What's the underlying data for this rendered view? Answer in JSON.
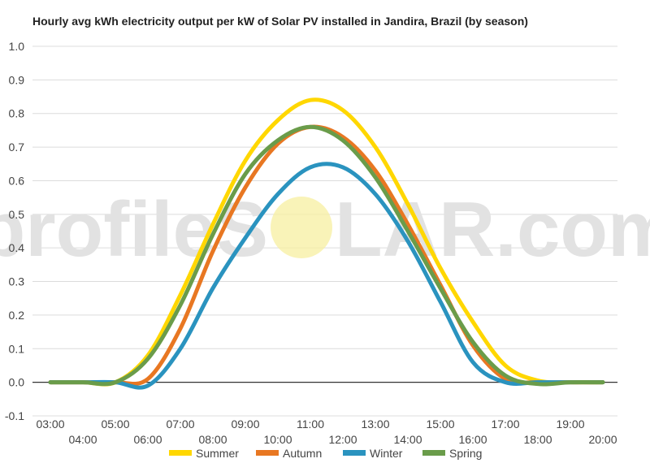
{
  "chart_data": {
    "type": "line",
    "title": "Hourly avg kWh electricity output per kW of Solar PV installed in Jandira, Brazil (by season)",
    "xlabel": "",
    "ylabel": "",
    "ylim": [
      -0.1,
      1.0
    ],
    "yticks": [
      "1.0",
      "0.9",
      "0.8",
      "0.7",
      "0.6",
      "0.5",
      "0.4",
      "0.3",
      "0.2",
      "0.1",
      "0.0",
      "-0.1"
    ],
    "x": [
      "03:00",
      "04:00",
      "05:00",
      "06:00",
      "07:00",
      "08:00",
      "09:00",
      "10:00",
      "11:00",
      "12:00",
      "13:00",
      "14:00",
      "15:00",
      "16:00",
      "17:00",
      "18:00",
      "19:00",
      "20:00"
    ],
    "grid": true,
    "legend_position": "bottom",
    "series": [
      {
        "name": "Summer",
        "color": "#FFD700",
        "values": [
          0,
          0,
          0,
          0.08,
          0.26,
          0.47,
          0.66,
          0.78,
          0.84,
          0.81,
          0.7,
          0.53,
          0.34,
          0.18,
          0.05,
          0.005,
          0,
          0
        ]
      },
      {
        "name": "Autumn",
        "color": "#E87722",
        "values": [
          0,
          0,
          0,
          0.01,
          0.16,
          0.39,
          0.58,
          0.71,
          0.76,
          0.73,
          0.63,
          0.47,
          0.29,
          0.11,
          0.01,
          0,
          0,
          0
        ]
      },
      {
        "name": "Winter",
        "color": "#2A93BF",
        "values": [
          0,
          0,
          0,
          -0.01,
          0.1,
          0.28,
          0.43,
          0.56,
          0.64,
          0.64,
          0.56,
          0.42,
          0.24,
          0.06,
          0,
          0,
          0,
          0
        ]
      },
      {
        "name": "Spring",
        "color": "#6A9C4A",
        "values": [
          0,
          0,
          0,
          0.07,
          0.23,
          0.44,
          0.62,
          0.72,
          0.76,
          0.72,
          0.61,
          0.45,
          0.28,
          0.12,
          0.02,
          -0.005,
          0,
          0
        ]
      }
    ]
  },
  "watermark": {
    "text_left": "profileS",
    "text_right": "LAR.com",
    "sun_color": "#f7efa0"
  }
}
